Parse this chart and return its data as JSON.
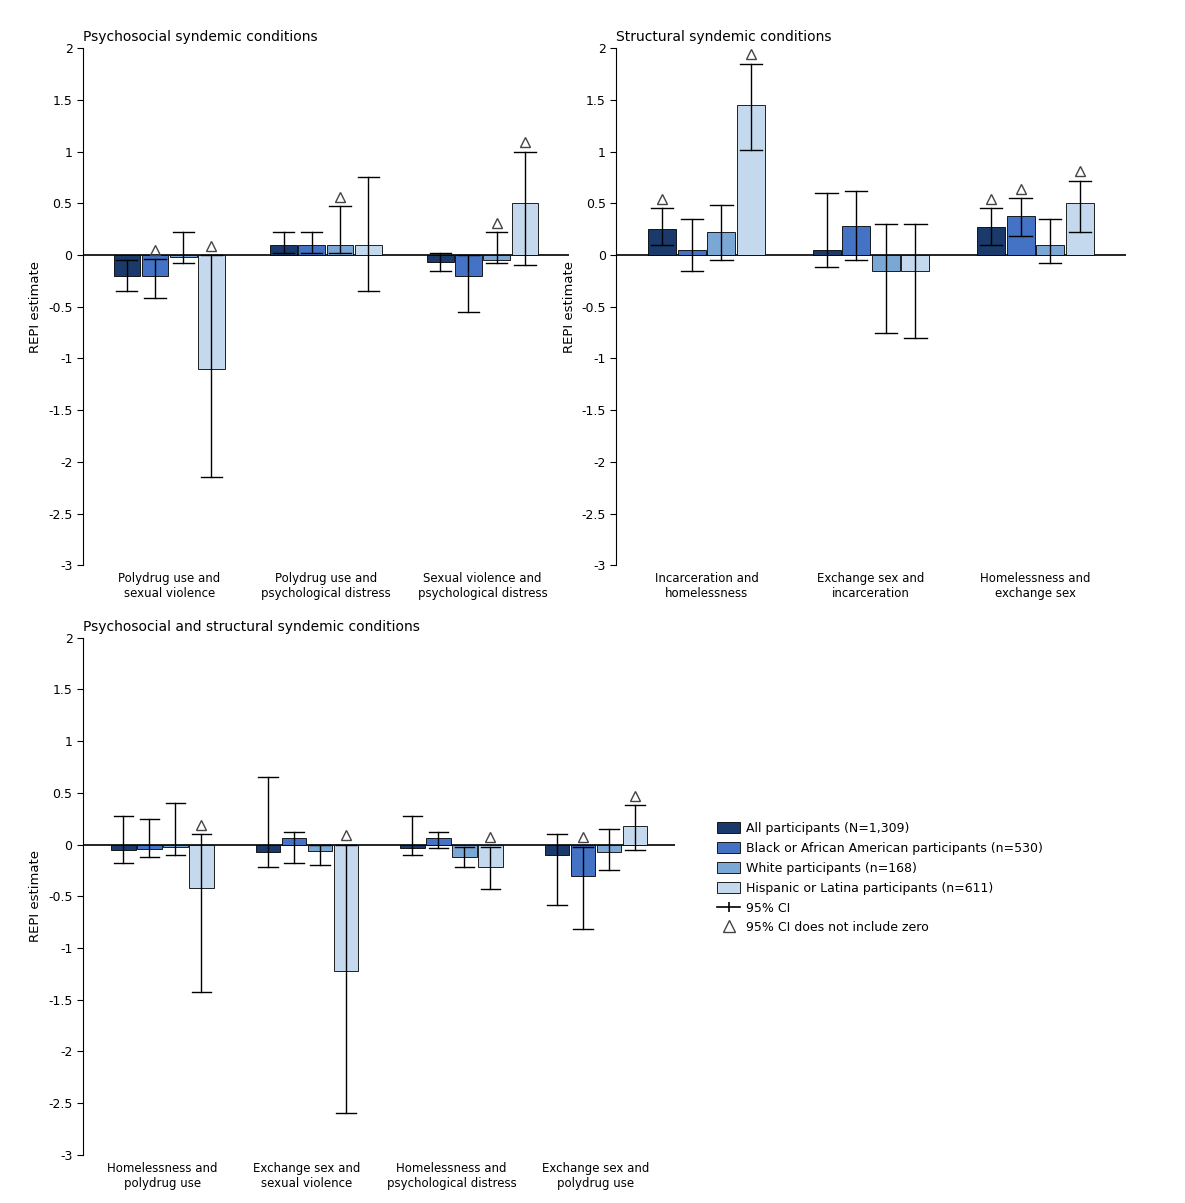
{
  "colors": {
    "all": "#1a3a6b",
    "black": "#4472c4",
    "white": "#7ba7d4",
    "hispanic": "#c5d9ee"
  },
  "panel1": {
    "title": "Psychosocial syndemic conditions",
    "groups": [
      "Polydrug use and\nsexual violence",
      "Polydrug use and\npsychological distress",
      "Sexual violence and\npsychological distress"
    ],
    "bars": {
      "all": [
        -0.2,
        0.1,
        -0.07
      ],
      "black": [
        -0.2,
        0.1,
        -0.2
      ],
      "white": [
        -0.02,
        0.1,
        -0.05
      ],
      "hispanic": [
        -1.1,
        0.1,
        0.5
      ]
    },
    "ci_low": {
      "all": [
        -0.35,
        0.02,
        -0.15
      ],
      "black": [
        -0.42,
        0.02,
        -0.55
      ],
      "white": [
        -0.08,
        0.02,
        -0.08
      ],
      "hispanic": [
        -2.15,
        -0.35,
        -0.1
      ]
    },
    "ci_high": {
      "all": [
        -0.05,
        0.22,
        0.02
      ],
      "black": [
        -0.04,
        0.22,
        0.0
      ],
      "white": [
        0.22,
        0.47,
        0.22
      ],
      "hispanic": [
        0.0,
        0.75,
        1.0
      ]
    },
    "triangle": {
      "all": [
        false,
        false,
        false
      ],
      "black": [
        true,
        false,
        false
      ],
      "white": [
        false,
        true,
        true
      ],
      "hispanic": [
        true,
        false,
        true
      ]
    }
  },
  "panel2": {
    "title": "Structural syndemic conditions",
    "groups": [
      "Incarceration and\nhomelessness",
      "Exchange sex and\nincarceration",
      "Homelessness and\nexchange sex"
    ],
    "bars": {
      "all": [
        0.25,
        0.05,
        0.27
      ],
      "black": [
        0.05,
        0.28,
        0.38
      ],
      "white": [
        0.22,
        -0.15,
        0.1
      ],
      "hispanic": [
        1.45,
        -0.15,
        0.5
      ]
    },
    "ci_low": {
      "all": [
        0.1,
        -0.12,
        0.1
      ],
      "black": [
        -0.15,
        -0.05,
        0.18
      ],
      "white": [
        -0.05,
        -0.75,
        -0.08
      ],
      "hispanic": [
        1.02,
        -0.8,
        0.22
      ]
    },
    "ci_high": {
      "all": [
        0.45,
        0.6,
        0.45
      ],
      "black": [
        0.35,
        0.62,
        0.55
      ],
      "white": [
        0.48,
        0.3,
        0.35
      ],
      "hispanic": [
        1.85,
        0.3,
        0.72
      ]
    },
    "triangle": {
      "all": [
        true,
        false,
        true
      ],
      "black": [
        false,
        false,
        true
      ],
      "white": [
        false,
        false,
        false
      ],
      "hispanic": [
        true,
        false,
        true
      ]
    }
  },
  "panel3": {
    "title": "Psychosocial and structural syndemic conditions",
    "groups": [
      "Homelessness and\npolydrug use",
      "Exchange sex and\nsexual violence",
      "Homelessness and\npsychological distress",
      "Exchange sex and\npolydrug use"
    ],
    "bars": {
      "all": [
        -0.05,
        -0.07,
        -0.03,
        -0.1
      ],
      "black": [
        -0.04,
        0.06,
        0.06,
        -0.3
      ],
      "white": [
        -0.02,
        -0.06,
        -0.12,
        -0.07
      ],
      "hispanic": [
        -0.42,
        -1.22,
        -0.22,
        0.18
      ]
    },
    "ci_low": {
      "all": [
        -0.18,
        -0.22,
        -0.1,
        -0.58
      ],
      "black": [
        -0.12,
        -0.18,
        -0.03,
        -0.82
      ],
      "white": [
        -0.1,
        -0.2,
        -0.22,
        -0.25
      ],
      "hispanic": [
        -1.43,
        -2.6,
        -0.43,
        -0.05
      ]
    },
    "ci_high": {
      "all": [
        0.28,
        0.65,
        0.28,
        0.1
      ],
      "black": [
        0.25,
        0.12,
        0.12,
        -0.02
      ],
      "white": [
        0.4,
        0.0,
        -0.02,
        0.15
      ],
      "hispanic": [
        0.1,
        0.0,
        -0.02,
        0.38
      ]
    },
    "triangle": {
      "all": [
        false,
        false,
        false,
        false
      ],
      "black": [
        false,
        false,
        false,
        true
      ],
      "white": [
        false,
        false,
        false,
        false
      ],
      "hispanic": [
        true,
        true,
        true,
        true
      ]
    }
  },
  "legend": {
    "labels": [
      "All participants (N=1,309)",
      "Black or African American participants (n=530)",
      "White participants (n=168)",
      "Hispanic or Latina participants (n=611)"
    ]
  },
  "yticks": [
    -3,
    -2.5,
    -2,
    -1.5,
    -1,
    -0.5,
    0,
    0.5,
    1,
    1.5,
    2
  ],
  "ylim": [
    -3,
    2
  ]
}
